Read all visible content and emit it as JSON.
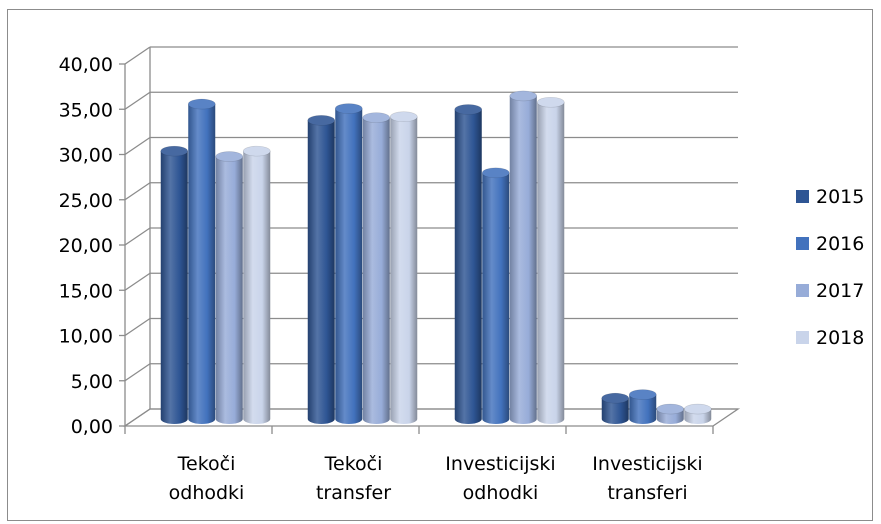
{
  "chart_data": {
    "type": "bar",
    "categories": [
      [
        "Tekoči",
        "odhodki"
      ],
      [
        "Tekoči",
        "transfer"
      ],
      [
        "Investicijski",
        "odhodki"
      ],
      [
        "Investicijski",
        "transferi"
      ]
    ],
    "series": [
      {
        "name": "2015",
        "color": "#2e5594",
        "values": [
          29.6,
          33.0,
          34.2,
          2.3
        ]
      },
      {
        "name": "2016",
        "color": "#4272bd",
        "values": [
          34.8,
          34.3,
          27.2,
          2.7
        ]
      },
      {
        "name": "2017",
        "color": "#97acd8",
        "values": [
          29.0,
          33.3,
          35.7,
          1.1
        ]
      },
      {
        "name": "2018",
        "color": "#c9d4ea",
        "values": [
          29.6,
          33.4,
          35.0,
          1.1
        ]
      }
    ],
    "ylim": [
      0,
      40
    ],
    "yticks": [
      "0,00",
      "5,00",
      "10,00",
      "15,00",
      "20,00",
      "25,00",
      "30,00",
      "35,00",
      "40,00"
    ],
    "grid": true,
    "legend_position": "right",
    "style": "3d-cylinder-bars"
  }
}
